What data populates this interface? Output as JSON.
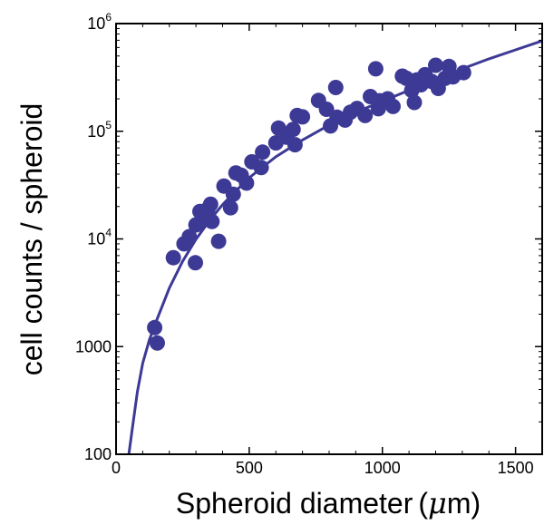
{
  "chart_data": {
    "type": "scatter",
    "title": "",
    "xlabel": "Spheroid diameter",
    "xlabel_unit_prefix": "μ",
    "xlabel_unit_suffix": "m",
    "ylabel": "cell counts / spheroid",
    "xlim": [
      0,
      1600
    ],
    "ylim": [
      100,
      1000000
    ],
    "y_scale": "log",
    "grid": false,
    "legend": "none",
    "colors": {
      "series": "#3d3a96",
      "axis": "#000000"
    },
    "x_ticks": [
      {
        "value": 0,
        "label": "0"
      },
      {
        "value": 500,
        "label": "500"
      },
      {
        "value": 1000,
        "label": "1000"
      },
      {
        "value": 1500,
        "label": "1500"
      }
    ],
    "y_ticks": [
      {
        "value": 100,
        "base": "100",
        "sup": ""
      },
      {
        "value": 1000,
        "base": "1000",
        "sup": ""
      },
      {
        "value": 10000,
        "base": "10",
        "sup": "4"
      },
      {
        "value": 100000,
        "base": "10",
        "sup": "5"
      },
      {
        "value": 1000000,
        "base": "10",
        "sup": "6"
      }
    ],
    "series": [
      {
        "points": [
          [
            145,
            1500
          ],
          [
            155,
            1080
          ],
          [
            215,
            6700
          ],
          [
            255,
            9000
          ],
          [
            275,
            10500
          ],
          [
            298,
            6000
          ],
          [
            300,
            13500
          ],
          [
            315,
            18000
          ],
          [
            330,
            15000
          ],
          [
            345,
            19000
          ],
          [
            355,
            21000
          ],
          [
            360,
            14500
          ],
          [
            385,
            9500
          ],
          [
            405,
            31000
          ],
          [
            430,
            19500
          ],
          [
            440,
            26000
          ],
          [
            450,
            41000
          ],
          [
            470,
            39000
          ],
          [
            490,
            33000
          ],
          [
            510,
            52000
          ],
          [
            545,
            46000
          ],
          [
            550,
            64000
          ],
          [
            600,
            78000
          ],
          [
            610,
            107000
          ],
          [
            640,
            88000
          ],
          [
            665,
            104000
          ],
          [
            672,
            75000
          ],
          [
            680,
            140000
          ],
          [
            700,
            136000
          ],
          [
            760,
            193000
          ],
          [
            790,
            160000
          ],
          [
            805,
            112000
          ],
          [
            825,
            255000
          ],
          [
            830,
            135000
          ],
          [
            860,
            127000
          ],
          [
            880,
            150000
          ],
          [
            905,
            163000
          ],
          [
            935,
            140000
          ],
          [
            955,
            210000
          ],
          [
            975,
            380000
          ],
          [
            985,
            162000
          ],
          [
            990,
            192000
          ],
          [
            1020,
            200000
          ],
          [
            1040,
            170000
          ],
          [
            1075,
            325000
          ],
          [
            1090,
            310000
          ],
          [
            1110,
            240000
          ],
          [
            1120,
            185000
          ],
          [
            1130,
            300000
          ],
          [
            1145,
            270000
          ],
          [
            1160,
            335000
          ],
          [
            1185,
            290000
          ],
          [
            1200,
            410000
          ],
          [
            1210,
            250000
          ],
          [
            1235,
            310000
          ],
          [
            1250,
            400000
          ],
          [
            1265,
            320000
          ],
          [
            1305,
            350000
          ]
        ],
        "fit": [
          [
            48,
            100
          ],
          [
            60,
            165
          ],
          [
            80,
            380
          ],
          [
            100,
            700
          ],
          [
            125,
            1150
          ],
          [
            150,
            1700
          ],
          [
            200,
            3500
          ],
          [
            250,
            6200
          ],
          [
            300,
            9900
          ],
          [
            350,
            14700
          ],
          [
            400,
            20800
          ],
          [
            450,
            28000
          ],
          [
            500,
            37000
          ],
          [
            600,
            58000
          ],
          [
            700,
            83000
          ],
          [
            800,
            114000
          ],
          [
            900,
            150000
          ],
          [
            1000,
            190000
          ],
          [
            1100,
            240000
          ],
          [
            1200,
            300000
          ],
          [
            1300,
            380000
          ],
          [
            1400,
            470000
          ],
          [
            1500,
            570000
          ],
          [
            1600,
            690000
          ]
        ]
      }
    ]
  }
}
